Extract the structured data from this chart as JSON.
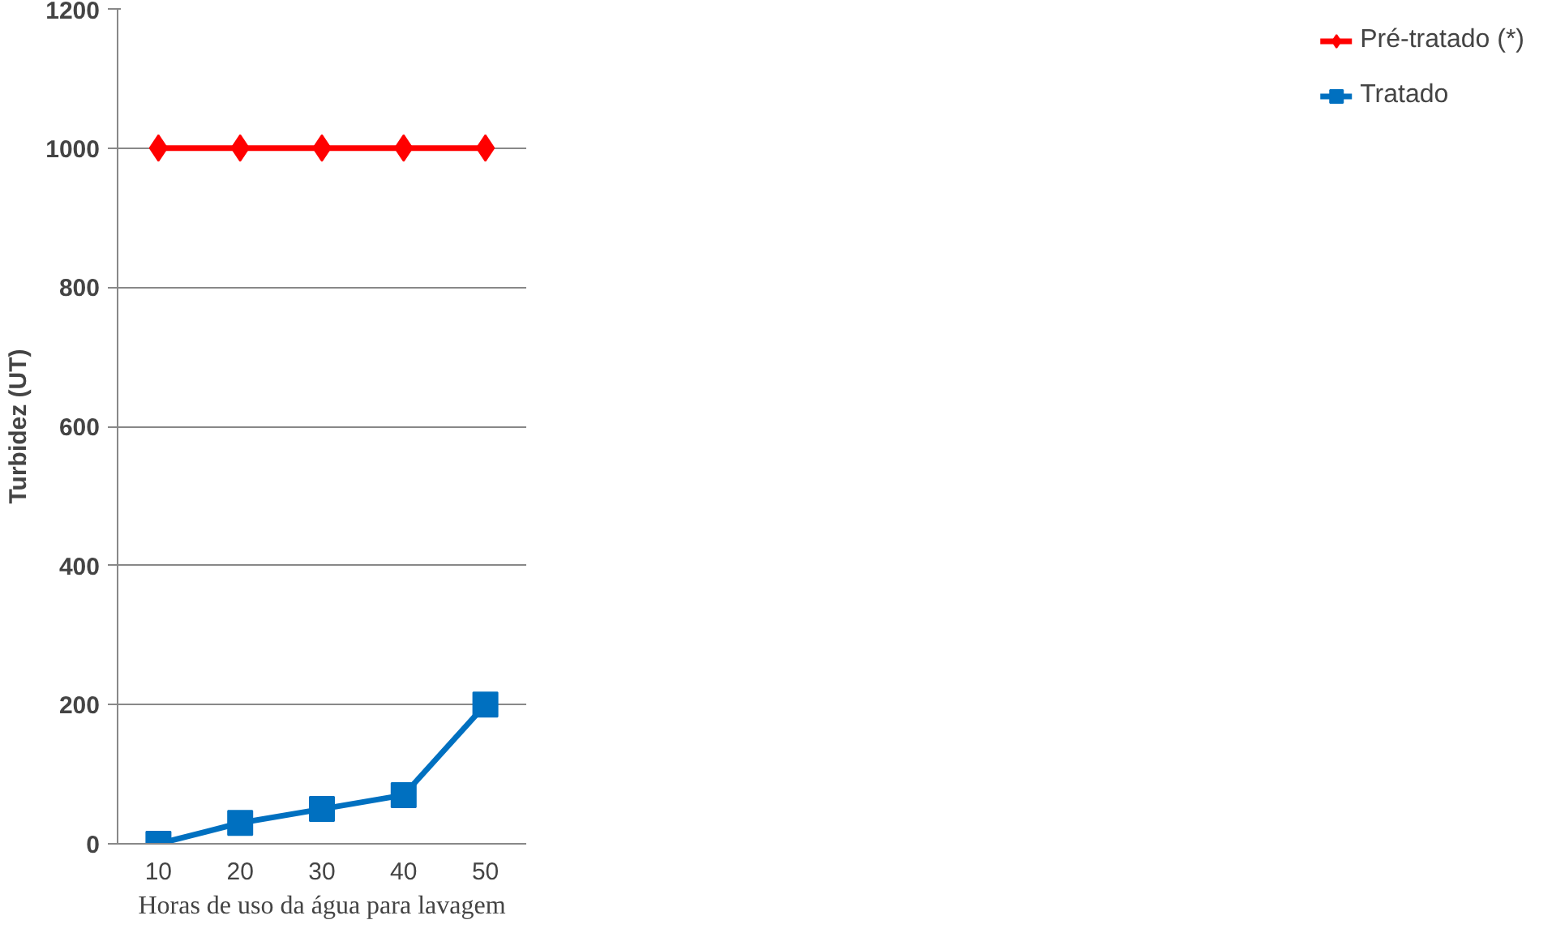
{
  "chart_data": {
    "type": "line",
    "xlabel": "Horas de uso da água para lavagem",
    "ylabel": "Turbidez (UT)",
    "categories": [
      "10",
      "20",
      "30",
      "40",
      "50"
    ],
    "series": [
      {
        "name": "Pré-tratado (*)",
        "color": "#ff0000",
        "values": [
          1000,
          1000,
          1000,
          1000,
          1000
        ],
        "marker": "diamond"
      },
      {
        "name": "Tratado",
        "color": "#0070c0",
        "values": [
          0,
          30,
          50,
          70,
          200
        ],
        "marker": "square"
      }
    ],
    "ylim": [
      0,
      1200
    ],
    "yticks": [
      0,
      200,
      400,
      600,
      800,
      1000,
      1200
    ],
    "grid": "y",
    "legend": "right"
  }
}
